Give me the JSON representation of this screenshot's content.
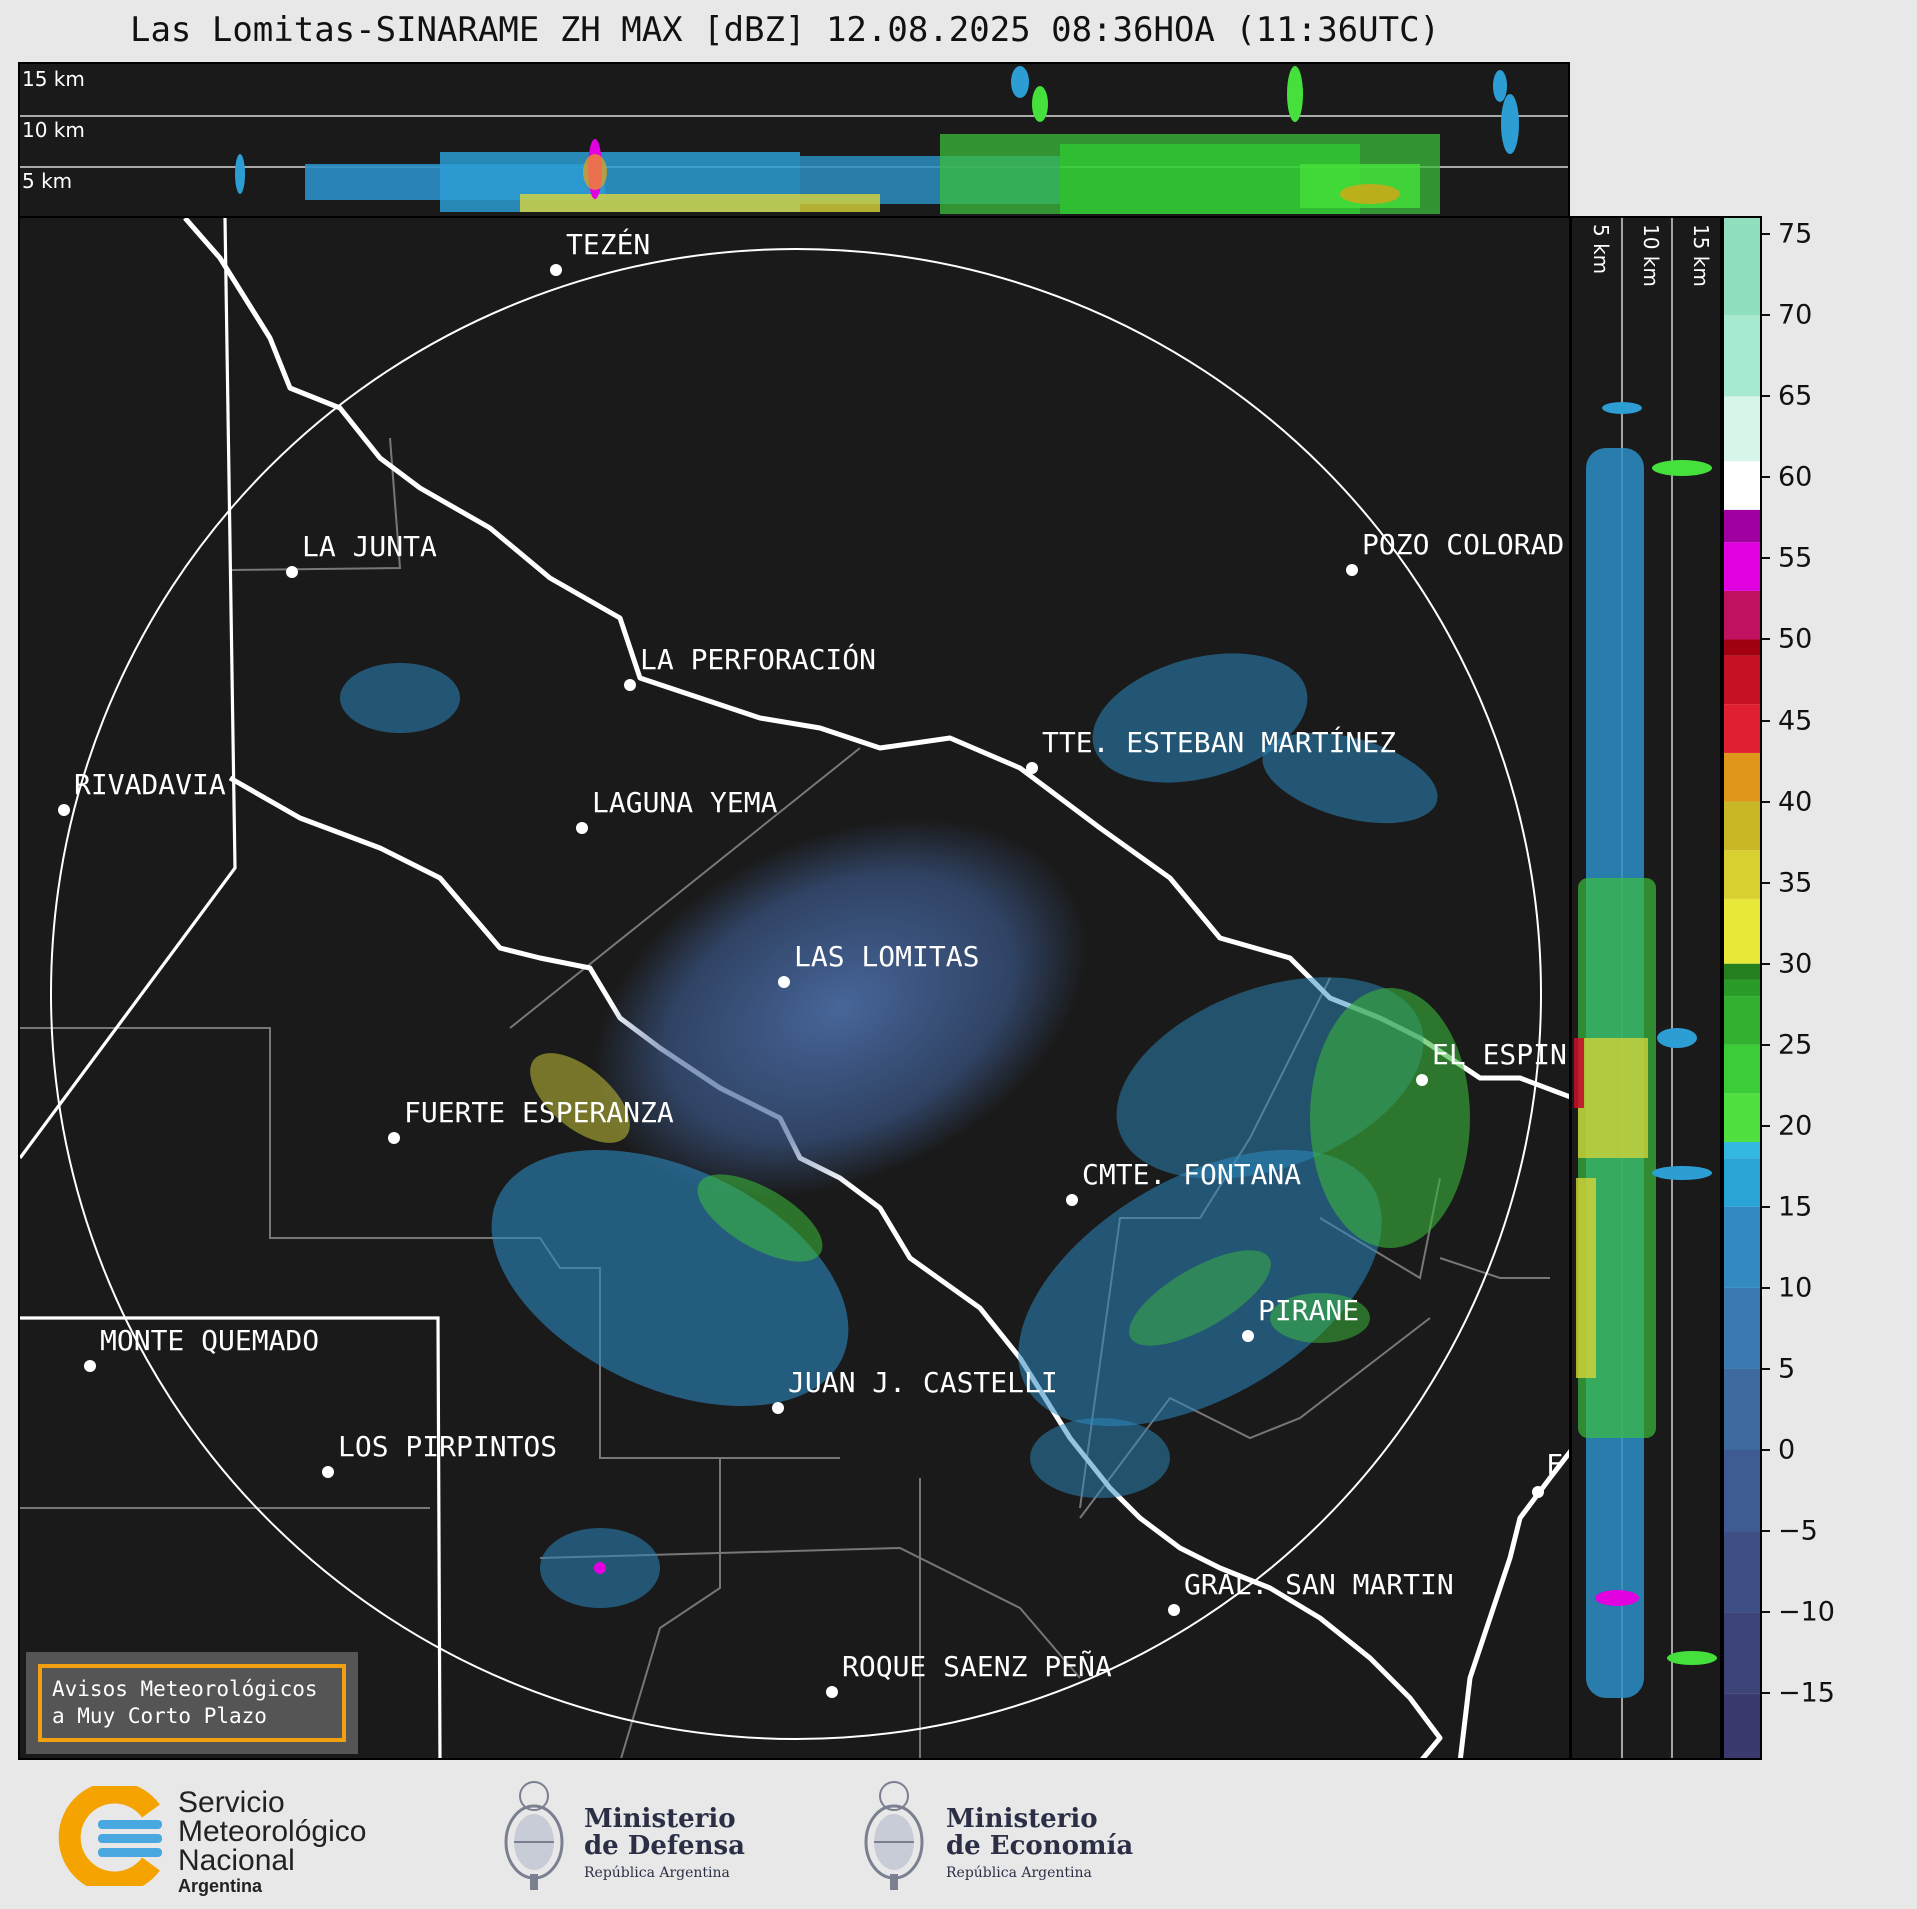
{
  "title": "Las Lomitas-SINARAME ZH MAX [dBZ] 12.08.2025 08:36HOA (11:36UTC)",
  "top_profile": {
    "height_labels": [
      "15 km",
      "10 km",
      "5 km"
    ]
  },
  "side_profile": {
    "height_labels": [
      "5 km",
      "10 km",
      "15 km"
    ]
  },
  "map": {
    "cities": [
      {
        "name": "TEZÉN"
      },
      {
        "name": "LA JUNTA"
      },
      {
        "name": "POZO COLORAD"
      },
      {
        "name": "LA PERFORACIÓN"
      },
      {
        "name": "TTE. ESTEBAN MARTÍNEZ"
      },
      {
        "name": "RIVADAVIA"
      },
      {
        "name": "LAGUNA YEMA"
      },
      {
        "name": "LAS LOMITAS"
      },
      {
        "name": "EL ESPIN"
      },
      {
        "name": "FUERTE ESPERANZA"
      },
      {
        "name": "CMTE. FONTANA"
      },
      {
        "name": "PIRANE"
      },
      {
        "name": "MONTE QUEMADO"
      },
      {
        "name": "JUAN J. CASTELLI"
      },
      {
        "name": "LOS PIRPINTOS"
      },
      {
        "name": "F"
      },
      {
        "name": "GRAL. SAN MARTIN"
      },
      {
        "name": "ROQUE SAENZ PEÑA"
      }
    ]
  },
  "colorbar": {
    "unit": "dBZ",
    "ticks": [
      "75",
      "70",
      "65",
      "60",
      "55",
      "50",
      "45",
      "40",
      "35",
      "30",
      "25",
      "20",
      "15",
      "10",
      "5",
      "0",
      "−5",
      "−10",
      "−15"
    ],
    "min": -19,
    "max": 76
  },
  "warning_box": {
    "line1": "Avisos Meteorológicos",
    "line2": "a Muy Corto Plazo"
  },
  "footer": {
    "smn": {
      "line1": "Servicio",
      "line2": "Meteorológico",
      "line3": "Nacional",
      "line4": "Argentina"
    },
    "defensa": {
      "line1": "Ministerio",
      "line2": "de Defensa",
      "line3": "República Argentina"
    },
    "economia": {
      "line1": "Ministerio",
      "line2": "de Economía",
      "line3": "República Argentina"
    }
  }
}
